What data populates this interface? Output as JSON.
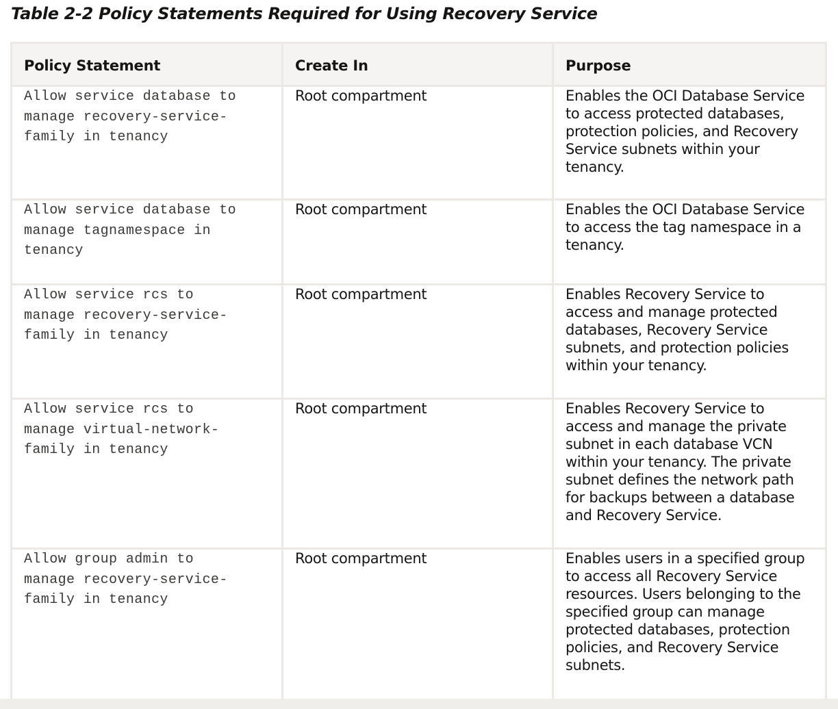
{
  "caption": "Table 2-2 Policy Statements Required for Using Recovery Service",
  "table": {
    "headers": {
      "policy_statement": "Policy Statement",
      "create_in": "Create In",
      "purpose": "Purpose"
    },
    "rows": [
      {
        "statement": "Allow service database to\nmanage recovery-service-\nfamily in tenancy",
        "create_in": "Root compartment",
        "purpose": "Enables the OCI Database Service\nto access protected databases,\nprotection policies, and Recovery\nService subnets within your\ntenancy."
      },
      {
        "statement": "Allow service database to\nmanage tagnamespace in\ntenancy",
        "create_in": "Root compartment",
        "purpose": "Enables the OCI Database Service\nto access the tag namespace in a\ntenancy."
      },
      {
        "statement": "Allow service rcs to\nmanage recovery-service-\nfamily in tenancy",
        "create_in": "Root compartment",
        "purpose": "Enables Recovery Service to\naccess and manage protected\ndatabases, Recovery Service\nsubnets, and protection policies\nwithin your tenancy."
      },
      {
        "statement": "Allow service rcs to\nmanage virtual-network-\nfamily in tenancy",
        "create_in": "Root compartment",
        "purpose": "Enables Recovery Service to\naccess and manage the private\nsubnet in each database VCN\nwithin your tenancy. The private\nsubnet defines the network path\nfor backups between a database\nand Recovery Service."
      },
      {
        "statement": "Allow group admin to\nmanage recovery-service-\nfamily in tenancy",
        "create_in": "Root compartment",
        "purpose": "Enables users in a specified group\nto access all Recovery Service\nresources. Users belonging to the\nspecified group can manage\nprotected databases, protection\npolicies, and Recovery Service\nsubnets."
      }
    ]
  }
}
